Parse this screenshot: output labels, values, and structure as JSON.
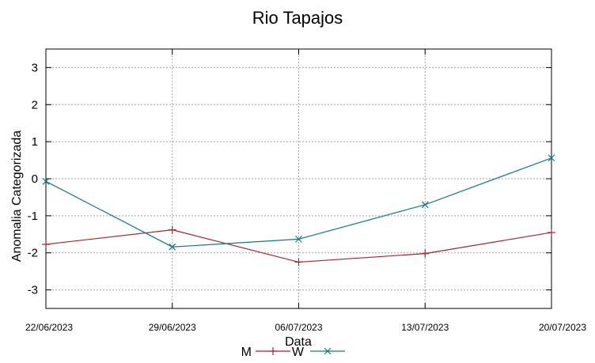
{
  "chart_data": {
    "type": "line",
    "title": "Rio Tapajos",
    "xlabel": "Data",
    "ylabel": "Anomalia Categorizada",
    "categories": [
      "22/06/2023",
      "29/06/2023",
      "06/07/2023",
      "13/07/2023",
      "20/07/2023"
    ],
    "yticks": [
      "3",
      "2",
      "1",
      "0",
      "-1",
      "-2",
      "-3"
    ],
    "ylim": [
      -3.5,
      3.5
    ],
    "grid": true,
    "legend_position": "bottom",
    "series": [
      {
        "name": "M",
        "color": "#a0262a",
        "marker": "plus",
        "values": [
          -1.77,
          -1.38,
          -2.25,
          -2.02,
          -1.45
        ]
      },
      {
        "name": "W",
        "color": "#137a7f",
        "marker": "cross",
        "values": [
          -0.07,
          -1.84,
          -1.63,
          -0.7,
          0.56
        ]
      }
    ]
  }
}
